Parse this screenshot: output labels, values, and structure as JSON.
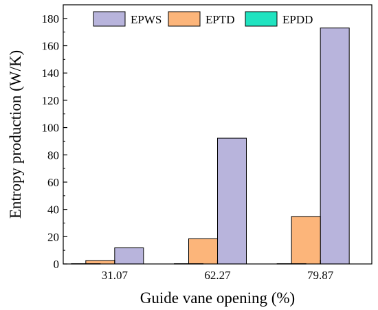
{
  "chart_data": {
    "type": "bar",
    "categories": [
      "31.07",
      "62.27",
      "79.87"
    ],
    "series": [
      {
        "name": "EPWS",
        "values": [
          11.8,
          92.2,
          173.0
        ],
        "color": "#b8b4dc"
      },
      {
        "name": "EPTD",
        "values": [
          2.5,
          18.5,
          34.8
        ],
        "color": "#fcb57a"
      },
      {
        "name": "EPDD",
        "values": [
          0.2,
          0.2,
          0.2
        ],
        "color": "#20e3c0"
      }
    ],
    "xlabel": "Guide vane opening (%)",
    "ylabel": "Entropy production (W/K)",
    "ylim": [
      0,
      190
    ],
    "yticks": [
      0,
      20,
      40,
      60,
      80,
      100,
      120,
      140,
      160,
      180
    ],
    "grid": false,
    "legend_position": "top"
  }
}
